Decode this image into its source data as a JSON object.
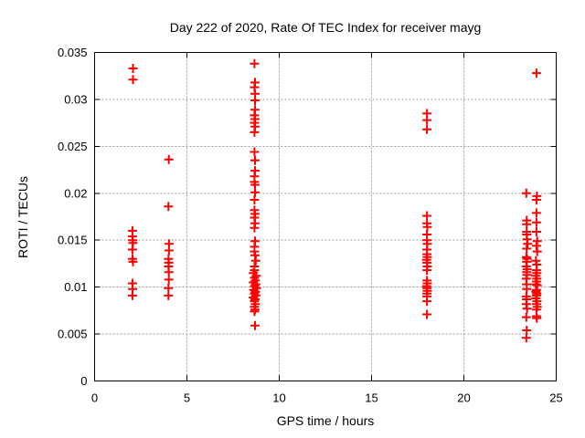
{
  "window": {
    "background": "#ffffff"
  },
  "chart_data": {
    "type": "scatter",
    "title": "Day 222 of 2020, Rate Of TEC Index for receiver mayg",
    "xlabel": "GPS time / hours",
    "ylabel": "ROTI / TECUs",
    "xlim": [
      0,
      25
    ],
    "ylim": [
      0,
      0.035
    ],
    "xtick_values": [
      0,
      5,
      10,
      15,
      20,
      25
    ],
    "xtick_labels": [
      "0",
      "5",
      "10",
      "15",
      "20",
      "25"
    ],
    "ytick_values": [
      0,
      0.005,
      0.01,
      0.015,
      0.02,
      0.025,
      0.03,
      0.035
    ],
    "ytick_labels": [
      "0",
      "0.005",
      "0.01",
      "0.015",
      "0.02",
      "0.025",
      "0.03",
      "0.035"
    ],
    "grid": true,
    "grid_style": "dashed",
    "grid_color": "#9b9b9b",
    "axis_color": "#000000",
    "legend": "none",
    "marker": {
      "shape": "plus",
      "color": "#ff0000",
      "size": 10,
      "stroke_width": 2
    },
    "series": [
      {
        "name": "ROTI",
        "points": [
          [
            2.08,
            0.0333
          ],
          [
            2.08,
            0.0321
          ],
          [
            2.05,
            0.016
          ],
          [
            2.05,
            0.0154
          ],
          [
            2.06,
            0.015
          ],
          [
            2.08,
            0.0147
          ],
          [
            2.05,
            0.014
          ],
          [
            2.05,
            0.013
          ],
          [
            2.08,
            0.0127
          ],
          [
            2.05,
            0.0104
          ],
          [
            2.06,
            0.0098
          ],
          [
            2.05,
            0.0091
          ],
          [
            4.02,
            0.0236
          ],
          [
            4.0,
            0.0186
          ],
          [
            4.03,
            0.0146
          ],
          [
            4.03,
            0.0139
          ],
          [
            4.0,
            0.013
          ],
          [
            4.02,
            0.0126
          ],
          [
            4.0,
            0.0122
          ],
          [
            4.02,
            0.0116
          ],
          [
            4.02,
            0.0108
          ],
          [
            4.0,
            0.0099
          ],
          [
            4.0,
            0.0091
          ],
          [
            8.66,
            0.0338
          ],
          [
            8.69,
            0.0318
          ],
          [
            8.66,
            0.0313
          ],
          [
            8.69,
            0.0306
          ],
          [
            8.69,
            0.0299
          ],
          [
            8.69,
            0.0289
          ],
          [
            8.66,
            0.0283
          ],
          [
            8.69,
            0.0279
          ],
          [
            8.66,
            0.0275
          ],
          [
            8.69,
            0.0271
          ],
          [
            8.66,
            0.0265
          ],
          [
            8.66,
            0.0244
          ],
          [
            8.69,
            0.0235
          ],
          [
            8.69,
            0.0224
          ],
          [
            8.66,
            0.0218
          ],
          [
            8.66,
            0.0212
          ],
          [
            8.69,
            0.0209
          ],
          [
            8.69,
            0.0201
          ],
          [
            8.66,
            0.0193
          ],
          [
            8.66,
            0.0182
          ],
          [
            8.69,
            0.0178
          ],
          [
            8.66,
            0.0174
          ],
          [
            8.69,
            0.0168
          ],
          [
            8.66,
            0.0163
          ],
          [
            8.69,
            0.0149
          ],
          [
            8.66,
            0.0143
          ],
          [
            8.66,
            0.0138
          ],
          [
            8.69,
            0.0134
          ],
          [
            8.73,
            0.0128
          ],
          [
            8.66,
            0.0122
          ],
          [
            8.66,
            0.0118
          ],
          [
            8.6,
            0.0115
          ],
          [
            8.75,
            0.0112
          ],
          [
            8.66,
            0.011
          ],
          [
            8.71,
            0.0107
          ],
          [
            8.6,
            0.0105
          ],
          [
            8.73,
            0.0103
          ],
          [
            8.66,
            0.0101
          ],
          [
            8.76,
            0.0099
          ],
          [
            8.62,
            0.0097
          ],
          [
            8.71,
            0.0095
          ],
          [
            8.66,
            0.0093
          ],
          [
            8.73,
            0.0091
          ],
          [
            8.6,
            0.0089
          ],
          [
            8.69,
            0.0087
          ],
          [
            8.66,
            0.0085
          ],
          [
            8.71,
            0.0082
          ],
          [
            8.66,
            0.0079
          ],
          [
            8.69,
            0.0076
          ],
          [
            8.66,
            0.0074
          ],
          [
            8.69,
            0.0059
          ],
          [
            18.0,
            0.0285
          ],
          [
            18.0,
            0.0278
          ],
          [
            18.0,
            0.0268
          ],
          [
            18.0,
            0.0176
          ],
          [
            18.0,
            0.0168
          ],
          [
            18.02,
            0.0164
          ],
          [
            18.0,
            0.0156
          ],
          [
            18.0,
            0.015
          ],
          [
            18.02,
            0.0146
          ],
          [
            18.0,
            0.014
          ],
          [
            18.0,
            0.0135
          ],
          [
            18.02,
            0.0132
          ],
          [
            17.98,
            0.0129
          ],
          [
            18.0,
            0.0126
          ],
          [
            18.02,
            0.0122
          ],
          [
            18.0,
            0.0118
          ],
          [
            18.0,
            0.0107
          ],
          [
            18.02,
            0.0104
          ],
          [
            17.98,
            0.0101
          ],
          [
            18.0,
            0.0099
          ],
          [
            18.02,
            0.0096
          ],
          [
            18.0,
            0.0093
          ],
          [
            18.0,
            0.009
          ],
          [
            18.0,
            0.0085
          ],
          [
            18.0,
            0.0071
          ],
          [
            23.38,
            0.02
          ],
          [
            23.4,
            0.0171
          ],
          [
            23.4,
            0.0167
          ],
          [
            23.4,
            0.0159
          ],
          [
            23.4,
            0.0156
          ],
          [
            23.42,
            0.0151
          ],
          [
            23.45,
            0.0146
          ],
          [
            23.4,
            0.0141
          ],
          [
            23.38,
            0.0132
          ],
          [
            23.42,
            0.013
          ],
          [
            23.4,
            0.0127
          ],
          [
            23.38,
            0.0122
          ],
          [
            23.42,
            0.0119
          ],
          [
            23.4,
            0.0116
          ],
          [
            23.42,
            0.0113
          ],
          [
            23.38,
            0.0109
          ],
          [
            23.4,
            0.0103
          ],
          [
            23.4,
            0.0098
          ],
          [
            23.38,
            0.009
          ],
          [
            23.4,
            0.0087
          ],
          [
            23.38,
            0.0082
          ],
          [
            23.42,
            0.0077
          ],
          [
            23.38,
            0.0068
          ],
          [
            23.4,
            0.0054
          ],
          [
            23.38,
            0.0046
          ],
          [
            23.93,
            0.0328
          ],
          [
            23.95,
            0.0197
          ],
          [
            23.93,
            0.0193
          ],
          [
            23.93,
            0.0179
          ],
          [
            23.93,
            0.0169
          ],
          [
            23.93,
            0.0159
          ],
          [
            23.97,
            0.0149
          ],
          [
            23.93,
            0.0144
          ],
          [
            23.97,
            0.0138
          ],
          [
            23.9,
            0.0128
          ],
          [
            23.95,
            0.0124
          ],
          [
            23.93,
            0.0118
          ],
          [
            23.95,
            0.0115
          ],
          [
            23.9,
            0.0112
          ],
          [
            23.95,
            0.0109
          ],
          [
            23.93,
            0.0106
          ],
          [
            23.9,
            0.0103
          ],
          [
            23.97,
            0.0102
          ],
          [
            23.93,
            0.0097
          ],
          [
            23.9,
            0.0095
          ],
          [
            23.95,
            0.0093
          ],
          [
            23.93,
            0.0091
          ],
          [
            23.9,
            0.0088
          ],
          [
            23.95,
            0.0085
          ],
          [
            23.93,
            0.0082
          ],
          [
            23.97,
            0.0079
          ],
          [
            23.93,
            0.0076
          ],
          [
            23.93,
            0.0069
          ],
          [
            23.95,
            0.0067
          ]
        ]
      }
    ]
  }
}
